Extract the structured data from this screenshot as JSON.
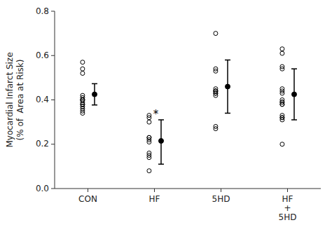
{
  "chart_data": {
    "type": "scatter",
    "categories": [
      "CON",
      "HF",
      "5HD",
      "HF\n+\n5HD"
    ],
    "series": [
      {
        "type": "scatter",
        "marker": "open-circle",
        "color": "#000000",
        "values": [
          [
            0.57,
            0.54,
            0.52,
            0.42,
            0.41,
            0.4,
            0.4,
            0.4,
            0.39,
            0.38,
            0.38,
            0.37,
            0.36,
            0.35,
            0.34
          ],
          [
            0.33,
            0.32,
            0.3,
            0.23,
            0.23,
            0.22,
            0.21,
            0.16,
            0.15,
            0.14,
            0.08
          ],
          [
            0.7,
            0.54,
            0.53,
            0.45,
            0.44,
            0.44,
            0.44,
            0.43,
            0.43,
            0.42,
            0.28,
            0.27
          ],
          [
            0.63,
            0.61,
            0.55,
            0.54,
            0.45,
            0.44,
            0.43,
            0.4,
            0.39,
            0.39,
            0.38,
            0.38,
            0.33,
            0.32,
            0.32,
            0.31,
            0.2
          ]
        ]
      },
      {
        "type": "errorbar",
        "marker": "circle",
        "color": "#000000",
        "values": [
          0.425,
          0.215,
          0.46,
          0.425
        ],
        "error_low": [
          0.048,
          0.105,
          0.12,
          0.115
        ],
        "error_high": [
          0.048,
          0.095,
          0.12,
          0.115
        ]
      }
    ],
    "ylabel": "Myocardial Infarct Size\n(% of  Area at Risk)",
    "ylim": [
      0.0,
      0.8
    ],
    "yticks": [
      {
        "value": 0.0,
        "label": "0.0"
      },
      0.2,
      0.4,
      0.6,
      0.8
    ],
    "grid": false,
    "annotations": [
      {
        "text": "*",
        "category": "HF",
        "y": 0.335
      }
    ]
  }
}
